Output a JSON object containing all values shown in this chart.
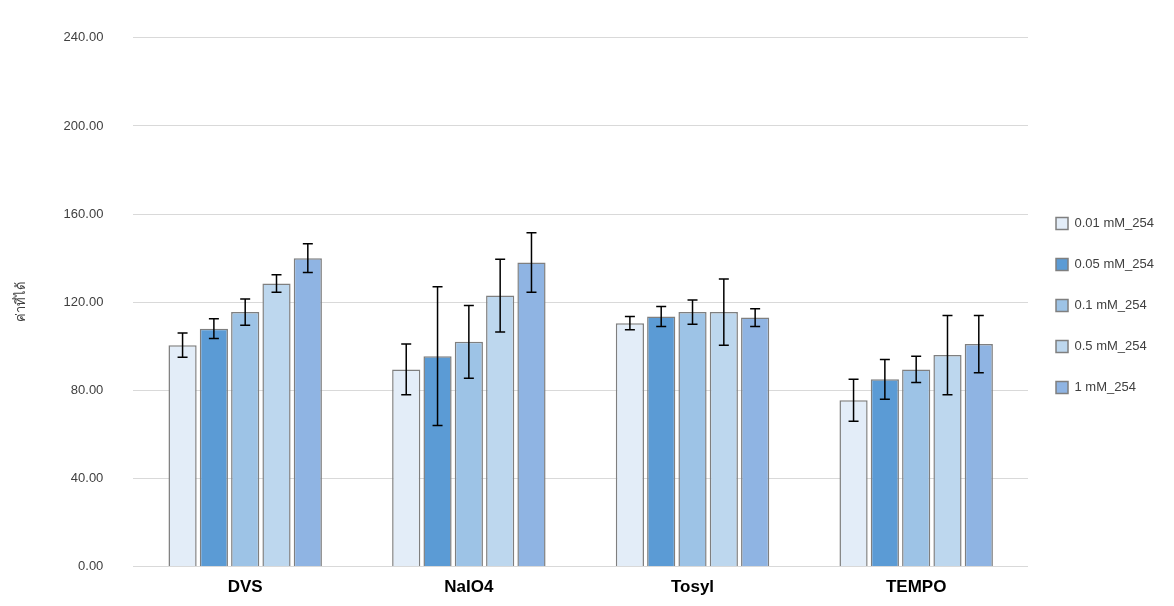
{
  "chart_data": {
    "type": "bar",
    "ylabel": "ค่าที่ได้",
    "categories": [
      "DVS",
      "NaIO4",
      "Tosyl",
      "TEMPO"
    ],
    "series": [
      {
        "name": "0.01 mM_254",
        "color": "#e3edf8",
        "values": [
          100.5,
          89.5,
          110.5,
          75.5
        ],
        "errors": [
          5.5,
          11.5,
          3,
          9.5
        ]
      },
      {
        "name": "0.05 mM_254",
        "color": "#5b9bd5",
        "values": [
          108,
          95.5,
          113.5,
          85
        ],
        "errors": [
          4.5,
          31.5,
          4.5,
          9
        ]
      },
      {
        "name": "0.1 mM_254",
        "color": "#9dc3e6",
        "values": [
          115.5,
          102,
          115.5,
          89.5
        ],
        "errors": [
          6,
          16.5,
          5.5,
          6
        ]
      },
      {
        "name": "0.5 mM_254",
        "color": "#bdd7ee",
        "values": [
          128.5,
          123,
          115.5,
          96
        ],
        "errors": [
          4,
          16.5,
          15,
          18
        ]
      },
      {
        "name": "1 mM_254",
        "color": "#8fb4e3",
        "values": [
          140,
          138,
          113,
          101
        ],
        "errors": [
          6.5,
          13.5,
          4,
          13
        ]
      }
    ],
    "ylim": [
      0,
      240
    ],
    "yticks": [
      {
        "value": 0,
        "label": "0.00"
      },
      {
        "value": 40,
        "label": "40.00"
      },
      {
        "value": 80,
        "label": "80.00"
      },
      {
        "value": 120,
        "label": "120.00"
      },
      {
        "value": 160,
        "label": "160.00"
      },
      {
        "value": 200,
        "label": "200.00"
      },
      {
        "value": 240,
        "label": "240.00"
      }
    ],
    "grid": "y",
    "legend": "right"
  }
}
